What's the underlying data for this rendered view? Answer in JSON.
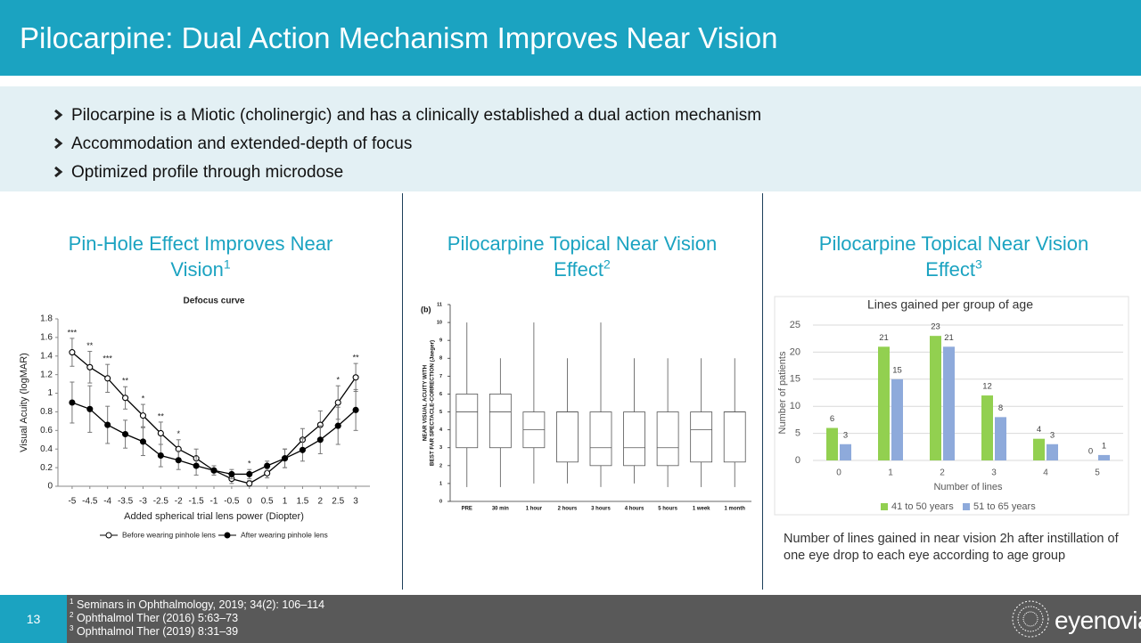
{
  "header": {
    "title": "Pilocarpine: Dual Action Mechanism Improves Near Vision"
  },
  "bullets": [
    "Pilocarpine is a Miotic (cholinergic) and has a clinically established a dual action mechanism",
    "Accommodation and extended-depth of focus",
    "Optimized profile through microdose"
  ],
  "panels": [
    {
      "text": "Pin-Hole Effect Improves Near Vision",
      "sup": "1"
    },
    {
      "text": "Pilocarpine Topical Near Vision Effect",
      "sup": "2"
    },
    {
      "text": "Pilocarpine Topical Near Vision Effect",
      "sup": "3"
    }
  ],
  "chart_data": [
    {
      "type": "line",
      "title": "Defocus curve",
      "xlabel": "Added spherical trial lens power (Diopter)",
      "ylabel": "Visual Acuity (logMAR)",
      "x": [
        -5,
        -4.5,
        -4,
        -3.5,
        -3,
        -2.5,
        -2,
        -1.5,
        -1,
        -0.5,
        0,
        0.5,
        1,
        1.5,
        2,
        2.5,
        3
      ],
      "xlim": [
        -5.4,
        3.4
      ],
      "xticks": [
        -5,
        -4.5,
        -4,
        -3.5,
        -3,
        -2.5,
        -2,
        -1.5,
        -1,
        -0.5,
        0,
        0.5,
        1,
        1.5,
        2,
        2.5,
        3
      ],
      "ylim": [
        0,
        1.8
      ],
      "yticks": [
        0,
        0.2,
        0.4,
        0.6,
        0.8,
        1,
        1.2,
        1.4,
        1.6,
        1.8
      ],
      "grid": false,
      "legend": "bottom",
      "series": [
        {
          "name": "Before wearing pinhole lens",
          "color": "#000000",
          "marker_fill": "#ffffff",
          "values": [
            1.44,
            1.28,
            1.16,
            0.95,
            0.76,
            0.57,
            0.4,
            0.3,
            0.17,
            0.08,
            0.03,
            0.14,
            0.3,
            0.5,
            0.66,
            0.9,
            1.17
          ],
          "errors": [
            0.15,
            0.17,
            0.15,
            0.12,
            0.12,
            0.12,
            0.1,
            0.1,
            0.05,
            0.05,
            0.03,
            0.05,
            0.1,
            0.12,
            0.15,
            0.18,
            0.15
          ]
        },
        {
          "name": "After wearing pinhole lens",
          "color": "#000000",
          "marker_fill": "#000000",
          "values": [
            0.9,
            0.83,
            0.66,
            0.56,
            0.48,
            0.33,
            0.28,
            0.22,
            0.17,
            0.13,
            0.13,
            0.22,
            0.3,
            0.39,
            0.5,
            0.65,
            0.82
          ],
          "errors": [
            0.22,
            0.25,
            0.2,
            0.15,
            0.15,
            0.12,
            0.1,
            0.1,
            0.05,
            0.05,
            0.05,
            0.05,
            0.1,
            0.12,
            0.15,
            0.2,
            0.22
          ]
        }
      ],
      "annotations": [
        {
          "x": -5,
          "label": "***"
        },
        {
          "x": -4.5,
          "label": "**"
        },
        {
          "x": -4,
          "label": "***"
        },
        {
          "x": -3.5,
          "label": "**"
        },
        {
          "x": -3,
          "label": "*"
        },
        {
          "x": -2.5,
          "label": "**"
        },
        {
          "x": -2,
          "label": "*"
        },
        {
          "x": 0,
          "label": "*"
        },
        {
          "x": 2.5,
          "label": "*"
        },
        {
          "x": 3,
          "label": "**"
        }
      ]
    },
    {
      "type": "box",
      "panel_label": "(b)",
      "ylabel_lines": [
        "NEAR VISUAL ACUITY WITH",
        "BEST FAR SPECTACLE-CORRECTION (Jaeger)"
      ],
      "categories": [
        "PRE",
        "30 min",
        "1 hour",
        "2 hours",
        "3 hours",
        "4 hours",
        "5 hours",
        "1 week",
        "1 month"
      ],
      "ylim": [
        0,
        11
      ],
      "yticks": [
        0,
        1,
        2,
        3,
        4,
        5,
        6,
        7,
        8,
        9,
        10,
        11
      ],
      "color": "#555555",
      "boxes": [
        {
          "min": 0.8,
          "q1": 3,
          "median": 5,
          "q3": 6,
          "max": 10
        },
        {
          "min": 0.8,
          "q1": 3,
          "median": 5,
          "q3": 6,
          "max": 8
        },
        {
          "min": 1,
          "q1": 3,
          "median": 4,
          "q3": 5,
          "max": 10
        },
        {
          "min": 1,
          "q1": 2.2,
          "median": 5,
          "q3": 5,
          "max": 8
        },
        {
          "min": 0.8,
          "q1": 2,
          "median": 3,
          "q3": 5,
          "max": 10
        },
        {
          "min": 1,
          "q1": 2,
          "median": 3,
          "q3": 5,
          "max": 8
        },
        {
          "min": 0.8,
          "q1": 2,
          "median": 3,
          "q3": 5,
          "max": 8
        },
        {
          "min": 0.8,
          "q1": 2.2,
          "median": 4,
          "q3": 5,
          "max": 8
        },
        {
          "min": 0.8,
          "q1": 2.2,
          "median": 5,
          "q3": 5,
          "max": 8
        }
      ]
    },
    {
      "type": "bar",
      "title": "Lines gained per group of age",
      "xlabel": "Number of lines",
      "ylabel": "Number of patients",
      "categories": [
        "0",
        "1",
        "2",
        "3",
        "4",
        "5"
      ],
      "ylim": [
        0,
        25
      ],
      "yticks": [
        0,
        5,
        10,
        15,
        20,
        25
      ],
      "grid": true,
      "legend": "bottom",
      "series": [
        {
          "name": "41 to 50 years",
          "color": "#92d050",
          "values": [
            6,
            21,
            23,
            12,
            4,
            0
          ]
        },
        {
          "name": "51 to 65 years",
          "color": "#8eaadb",
          "values": [
            3,
            15,
            21,
            8,
            3,
            1
          ]
        }
      ]
    }
  ],
  "caption": "Number of lines gained in near vision 2h after instillation of one eye drop to each eye according to age group",
  "footnotes": [
    {
      "sup": "1",
      "text": "Seminars in Ophthalmology, 2019; 34(2): 106–114"
    },
    {
      "sup": "2",
      "text": "Ophthalmol Ther (2016) 5:63–73"
    },
    {
      "sup": "3",
      "text": "Ophthalmol Ther (2019) 8:31–39"
    }
  ],
  "page_number": "13",
  "logo": "eyenovia"
}
